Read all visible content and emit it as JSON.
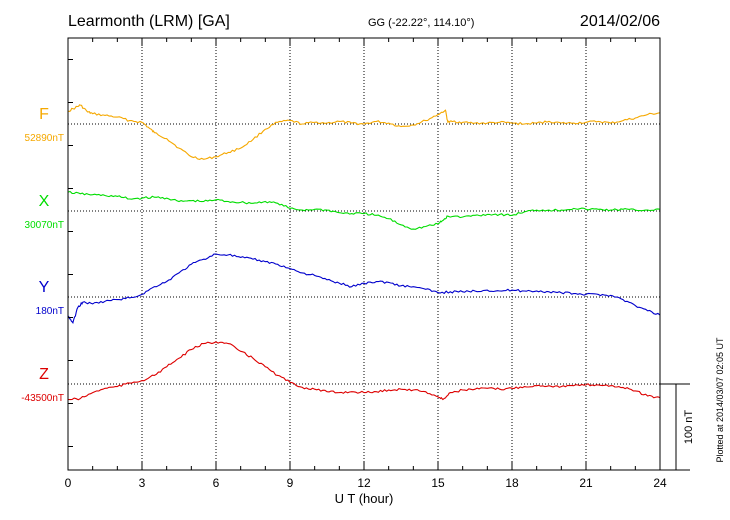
{
  "header": {
    "station": "Learmonth (LRM)  [GA]",
    "coords": "GG (-22.22°, 114.10°)",
    "date": "2014/02/06"
  },
  "footer": {
    "plotted": "Plotted at 2014/03/07 02:05 UT"
  },
  "colors": {
    "F": "#f5a800",
    "X": "#00dd00",
    "Y": "#0000cc",
    "Z": "#dd0000",
    "grid": "#000000"
  },
  "chart_data": {
    "type": "line",
    "xlabel": "U T (hour)",
    "xlim": [
      0,
      24
    ],
    "x_ticks": [
      "0",
      "3",
      "6",
      "9",
      "12",
      "15",
      "18",
      "21",
      "24"
    ],
    "scale_label": "100 nT",
    "grid": true,
    "series": [
      {
        "name": "F",
        "baseline_label": "52890nT",
        "x": [
          0,
          0.3,
          0.5,
          0.8,
          1.0,
          1.5,
          2.0,
          2.5,
          3.0,
          3.3,
          3.5,
          4.0,
          4.5,
          5.0,
          5.5,
          6.0,
          6.5,
          7.0,
          7.5,
          8.0,
          8.5,
          9.0,
          9.5,
          10.0,
          10.5,
          11.0,
          11.5,
          12.0,
          12.5,
          13.0,
          13.5,
          14.0,
          14.5,
          15.0,
          15.3,
          15.4,
          15.6,
          16.0,
          16.5,
          17.0,
          17.5,
          18.0,
          18.5,
          19.0,
          19.5,
          20.0,
          20.5,
          21.0,
          21.5,
          22.0,
          22.5,
          23.0,
          23.5,
          24.0
        ],
        "values": [
          15,
          19,
          22,
          14,
          12,
          10,
          8,
          4,
          2,
          -5,
          -10,
          -17,
          -28,
          -38,
          -41,
          -38,
          -33,
          -28,
          -18,
          -6,
          2,
          4,
          0,
          2,
          1,
          3,
          1,
          0,
          3,
          1,
          -3,
          -1,
          4,
          11,
          16,
          2,
          3,
          2,
          1,
          1,
          2,
          1,
          0,
          1,
          3,
          1,
          1,
          2,
          3,
          1,
          4,
          7,
          11,
          13
        ]
      },
      {
        "name": "X",
        "baseline_label": "30070nT",
        "x": [
          0,
          0.5,
          1.0,
          1.5,
          2.0,
          2.5,
          3.0,
          3.5,
          4.0,
          4.5,
          5.0,
          5.5,
          6.0,
          6.5,
          7.0,
          7.5,
          8.0,
          8.5,
          9.0,
          9.5,
          10.0,
          10.5,
          11.0,
          11.5,
          12.0,
          12.5,
          13.0,
          13.5,
          14.0,
          14.5,
          15.0,
          15.2,
          15.4,
          16.0,
          16.5,
          17.0,
          17.5,
          18.0,
          18.5,
          19.0,
          19.5,
          20.0,
          20.5,
          21.0,
          21.5,
          22.0,
          22.5,
          23.0,
          23.5,
          24.0
        ],
        "values": [
          22,
          20,
          19,
          18,
          17,
          14,
          15,
          16,
          15,
          11,
          12,
          11,
          13,
          11,
          10,
          9,
          11,
          9,
          3,
          1,
          2,
          1,
          -2,
          -3,
          -3,
          -5,
          -9,
          -16,
          -21,
          -18,
          -15,
          -11,
          -6,
          -7,
          -5,
          -4,
          -4,
          -5,
          -1,
          1,
          1,
          1,
          3,
          2,
          2,
          1,
          2,
          1,
          1,
          2
        ]
      },
      {
        "name": "Y",
        "baseline_label": "180nT",
        "x": [
          0,
          0.2,
          0.4,
          0.6,
          1.0,
          1.5,
          2.0,
          2.5,
          3.0,
          3.5,
          4.0,
          4.5,
          5.0,
          5.5,
          6.0,
          6.5,
          7.0,
          7.5,
          8.0,
          8.5,
          9.0,
          9.5,
          10.0,
          10.5,
          11.0,
          11.5,
          12.0,
          12.5,
          13.0,
          13.5,
          14.0,
          14.5,
          15.0,
          15.5,
          16.0,
          16.5,
          17.0,
          17.5,
          18.0,
          18.5,
          19.0,
          19.5,
          20.0,
          20.5,
          21.0,
          21.5,
          22.0,
          22.5,
          23.0,
          23.5,
          24.0
        ],
        "values": [
          -22,
          -30,
          -12,
          -6,
          -8,
          -5,
          -3,
          -1,
          3,
          12,
          18,
          28,
          38,
          44,
          50,
          49,
          46,
          44,
          41,
          38,
          33,
          28,
          25,
          20,
          16,
          12,
          16,
          18,
          17,
          13,
          12,
          9,
          5,
          6,
          6,
          7,
          8,
          7,
          8,
          7,
          7,
          6,
          5,
          4,
          3,
          3,
          2,
          -3,
          -10,
          -16,
          -21
        ]
      },
      {
        "name": "Z",
        "baseline_label": "-43500nT",
        "x": [
          0,
          0.5,
          1.0,
          1.5,
          2.0,
          2.5,
          3.0,
          3.5,
          4.0,
          4.5,
          5.0,
          5.5,
          6.0,
          6.5,
          7.0,
          7.5,
          8.0,
          8.5,
          9.0,
          9.5,
          10.0,
          10.5,
          11.0,
          11.5,
          12.0,
          12.5,
          13.0,
          13.5,
          14.0,
          14.5,
          15.0,
          15.2,
          15.5,
          16.0,
          16.5,
          17.0,
          17.5,
          18.0,
          18.5,
          19.0,
          19.5,
          20.0,
          20.5,
          21.0,
          21.5,
          22.0,
          22.5,
          23.0,
          23.5,
          24.0
        ],
        "values": [
          -18,
          -17,
          -10,
          -5,
          -3,
          1,
          4,
          10,
          20,
          30,
          40,
          47,
          49,
          47,
          38,
          30,
          20,
          10,
          2,
          -4,
          -6,
          -9,
          -10,
          -9,
          -10,
          -9,
          -7,
          -6,
          -7,
          -9,
          -15,
          -18,
          -10,
          -7,
          -6,
          -5,
          -6,
          -5,
          -3,
          -2,
          -2,
          -3,
          -2,
          -1,
          -1,
          -2,
          -4,
          -8,
          -14,
          -16
        ]
      }
    ]
  }
}
